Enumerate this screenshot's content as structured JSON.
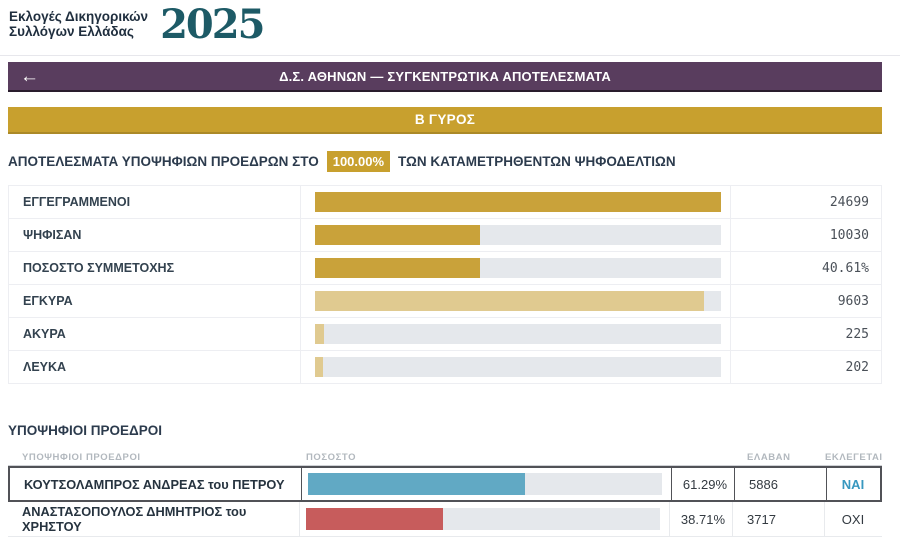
{
  "logo": {
    "line1": "Εκλογές Δικηγορικών",
    "line2": "Συλλόγων Ελλάδας",
    "year": "2025"
  },
  "header": {
    "back_arrow": "←",
    "title": "Δ.Σ. ΑΘΗΝΩΝ — ΣΥΓΚΕΝΤΡΩΤΙΚΑ ΑΠΟΤΕΛΕΣΜΑΤΑ"
  },
  "round_banner": {
    "label": "Β ΓΥΡΟΣ"
  },
  "progress_line": {
    "prefix": "ΑΠΟΤΕΛΕΣΜΑΤΑ ΥΠΟΨΗΦΙΩΝ ΠΡΟΕΔΡΩΝ ΣΤΟ",
    "percent": "100.00%",
    "suffix": "ΤΩΝ ΚΑΤΑΜΕΤΡΗΘΕΝΤΩΝ ΨΗΦΟΔΕΛΤΙΩΝ"
  },
  "stats": {
    "rows": [
      {
        "label": "ΕΓΓΕΓΡΑΜΜΕΝΟΙ",
        "value": "24699",
        "bar_pct": 100,
        "bar_color": "#c9a23a"
      },
      {
        "label": "ΨΗΦΙΣΑΝ",
        "value": "10030",
        "bar_pct": 40.6,
        "bar_color": "#c9a23a"
      },
      {
        "label": "ΠΟΣΟΣΤΟ ΣΥΜΜΕΤΟΧΗΣ",
        "value": "40.61%",
        "bar_pct": 40.61,
        "bar_color": "#c9a23a"
      },
      {
        "label": "ΕΓΚΥΡΑ",
        "value": "9603",
        "bar_pct": 95.7,
        "bar_color": "#e0ca90"
      },
      {
        "label": "ΑΚΥΡΑ",
        "value": "225",
        "bar_pct": 2.2,
        "bar_color": "#e0ca90"
      },
      {
        "label": "ΛΕΥΚΑ",
        "value": "202",
        "bar_pct": 2.0,
        "bar_color": "#e0ca90"
      }
    ]
  },
  "candidates": {
    "section_title": "ΥΠΟΨΗΦΙΟΙ ΠΡΟΕΔΡΟΙ",
    "columns": {
      "name": "ΥΠΟΨΗΦΙΟΙ ΠΡΟΕΔΡΟΙ",
      "pct_bar": "ΠΟΣΟΣΤΟ",
      "votes": "ΕΛΑΒΑΝ",
      "elected": "ΕΚΛΕΓΕΤΑΙ"
    },
    "rows": [
      {
        "name": "ΚΟΥΤΣΟΛΑΜΠΡΟΣ ΑΝΔΡΕΑΣ του ΠΕΤΡΟΥ",
        "pct": "61.29%",
        "bar_pct": 61.29,
        "bar_color": "#61a9c4",
        "votes": "5886",
        "elected": "ΝΑΙ",
        "elected_color": "#3898c0",
        "highlight": true
      },
      {
        "name": "ΑΝΑΣΤΑΣΟΠΟΥΛΟΣ ΔΗΜΗΤΡΙΟΣ του ΧΡΗΣΤΟΥ",
        "pct": "38.71%",
        "bar_pct": 38.71,
        "bar_color": "#c75c5c",
        "votes": "3717",
        "elected": "ΟΧΙ",
        "elected_color": "#333a41",
        "highlight": false
      }
    ]
  },
  "colors": {
    "purple_header": "#593d5e",
    "gold": "#c8a02e",
    "gold_bar_fill": "#c9a23a",
    "pale_gold_bar_fill": "#e0ca90",
    "bar_track": "#e5e8ec",
    "blue_bar": "#61a9c4",
    "red_bar": "#c75c5c",
    "elected_yes_text": "#3898c0",
    "navy_text": "#2c3b4d",
    "logo_year_teal": "#1d5a66"
  }
}
